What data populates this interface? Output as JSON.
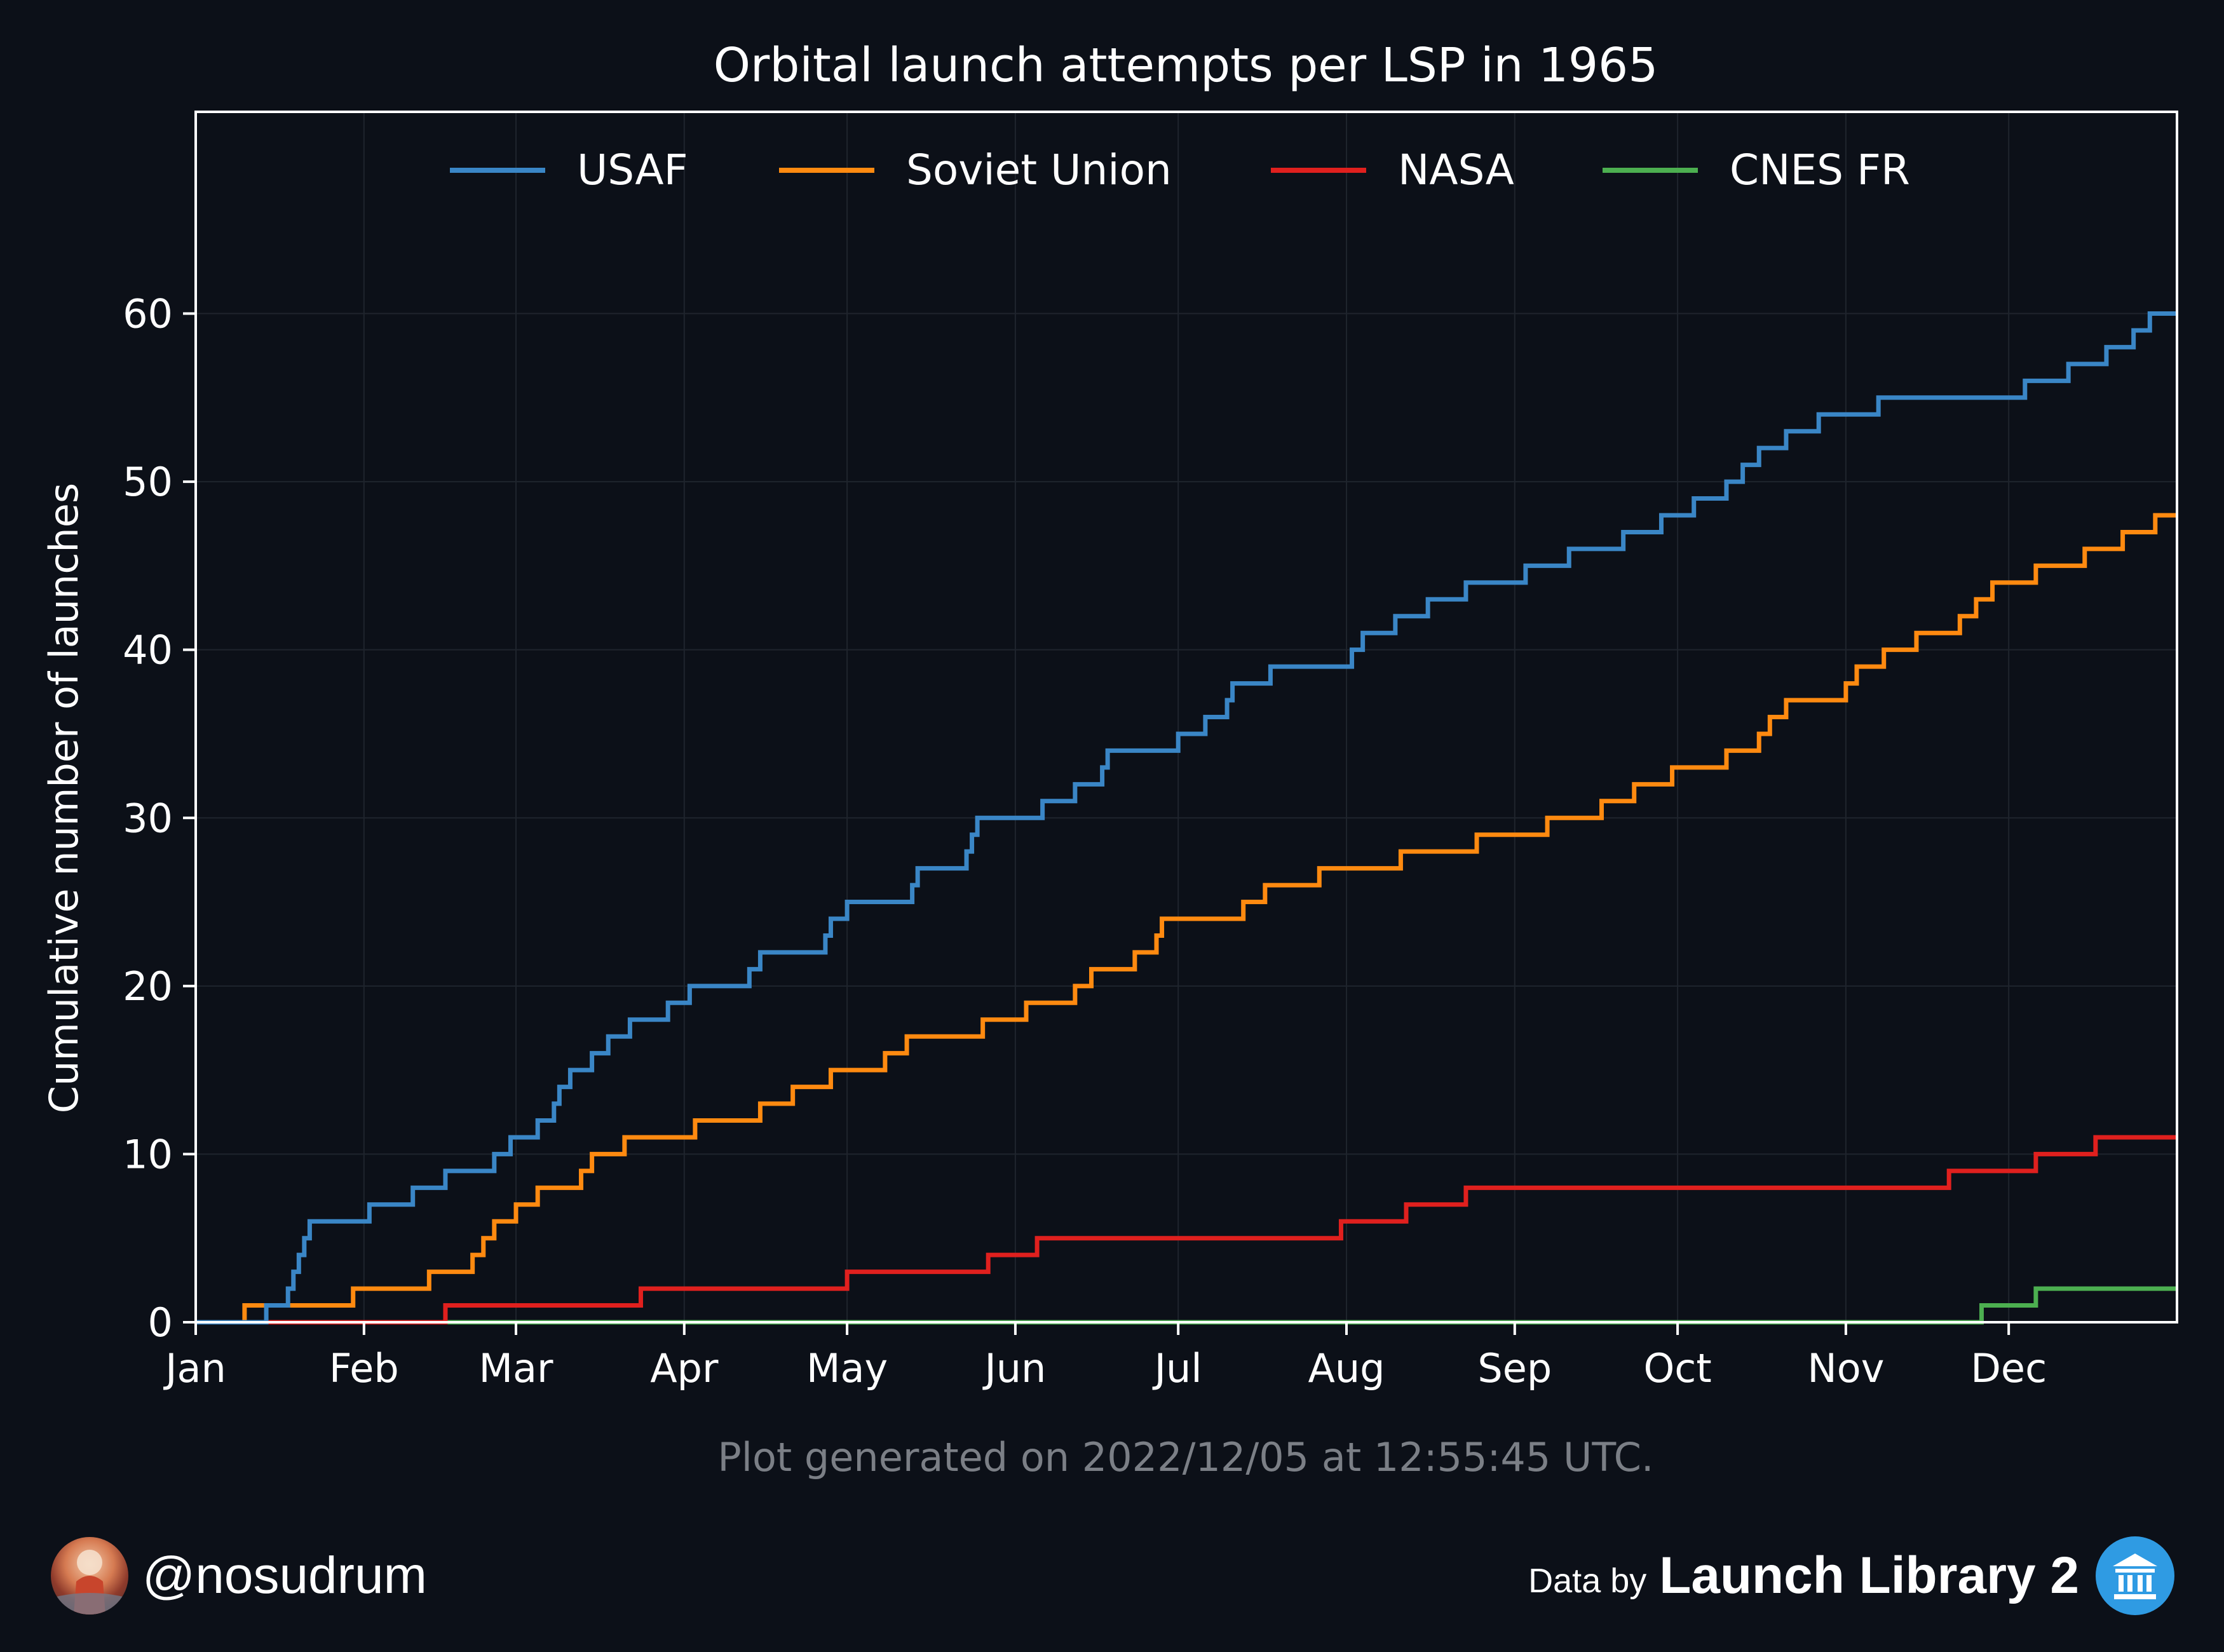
{
  "colors": {
    "background": "#0c1018",
    "text": "#ffffff",
    "footnote": "#7b7f86",
    "grid": "#1f242d",
    "usaf": "#3a86c6",
    "soviet": "#ff8a10",
    "nasa": "#e0201e",
    "cnes": "#4caf50"
  },
  "footnote": "Plot generated on 2022/12/05 at 12:55:45 UTC.",
  "author": {
    "handle": "@nosudrum",
    "avatar_icon": "astronaut-avatar-icon"
  },
  "credit": {
    "prefix": "Data by",
    "name": "Launch Library 2",
    "icon": "library-building-icon"
  },
  "chart_data": {
    "type": "line",
    "step": true,
    "title": "Orbital launch attempts per LSP in 1965",
    "xlabel": "",
    "ylabel": "Cumulative number of launches",
    "x_unit": "day of year 1965",
    "xlim": [
      1,
      366
    ],
    "ylim": [
      0,
      72
    ],
    "yticks": [
      0,
      10,
      20,
      30,
      40,
      50,
      60
    ],
    "xticks": [
      {
        "label": "Jan",
        "day": 1
      },
      {
        "label": "Feb",
        "day": 32
      },
      {
        "label": "Mar",
        "day": 60
      },
      {
        "label": "Apr",
        "day": 91
      },
      {
        "label": "May",
        "day": 121
      },
      {
        "label": "Jun",
        "day": 152
      },
      {
        "label": "Jul",
        "day": 182
      },
      {
        "label": "Aug",
        "day": 213
      },
      {
        "label": "Sep",
        "day": 244
      },
      {
        "label": "Oct",
        "day": 274
      },
      {
        "label": "Nov",
        "day": 305
      },
      {
        "label": "Dec",
        "day": 335
      }
    ],
    "grid": true,
    "legend": "top-center",
    "series": [
      {
        "name": "USAF",
        "color": "#3a86c6",
        "x": [
          1,
          14,
          18,
          19,
          20,
          21,
          22,
          33,
          41,
          47,
          56,
          59,
          64,
          67,
          68,
          70,
          74,
          77,
          81,
          88,
          92,
          103,
          105,
          117,
          118,
          121,
          133,
          134,
          143,
          144,
          145,
          157,
          163,
          168,
          169,
          182,
          187,
          191,
          192,
          199,
          214,
          216,
          222,
          228,
          235,
          246,
          254,
          264,
          271,
          277,
          283,
          286,
          289,
          294,
          300,
          311,
          338,
          346,
          353,
          358,
          361,
          366
        ],
        "y": [
          0,
          1,
          2,
          3,
          4,
          5,
          6,
          7,
          8,
          9,
          10,
          11,
          12,
          13,
          14,
          15,
          16,
          17,
          18,
          19,
          20,
          21,
          22,
          23,
          24,
          25,
          26,
          27,
          28,
          29,
          30,
          31,
          32,
          33,
          34,
          35,
          36,
          37,
          38,
          39,
          40,
          41,
          42,
          43,
          44,
          45,
          46,
          47,
          48,
          49,
          50,
          51,
          52,
          53,
          54,
          55,
          56,
          57,
          58,
          59,
          60,
          60
        ]
      },
      {
        "name": "Soviet Union",
        "color": "#ff8a10",
        "x": [
          1,
          10,
          30,
          44,
          52,
          54,
          56,
          60,
          64,
          72,
          74,
          80,
          93,
          105,
          111,
          118,
          128,
          132,
          146,
          154,
          163,
          166,
          174,
          178,
          179,
          194,
          198,
          208,
          223,
          237,
          250,
          260,
          266,
          273,
          283,
          289,
          291,
          294,
          305,
          307,
          312,
          318,
          326,
          329,
          332,
          340,
          349,
          356,
          362,
          366
        ],
        "y": [
          0,
          1,
          2,
          3,
          4,
          5,
          6,
          7,
          8,
          9,
          10,
          11,
          12,
          13,
          14,
          15,
          16,
          17,
          18,
          19,
          20,
          21,
          22,
          23,
          24,
          25,
          26,
          27,
          28,
          29,
          30,
          31,
          32,
          33,
          34,
          35,
          36,
          37,
          38,
          39,
          40,
          41,
          42,
          43,
          44,
          45,
          46,
          47,
          48,
          48
        ]
      },
      {
        "name": "NASA",
        "color": "#e0201e",
        "x": [
          1,
          47,
          83,
          121,
          147,
          156,
          212,
          224,
          235,
          324,
          340,
          351,
          366
        ],
        "y": [
          0,
          1,
          2,
          3,
          4,
          5,
          6,
          7,
          8,
          9,
          10,
          11,
          11
        ]
      },
      {
        "name": "CNES FR",
        "color": "#4caf50",
        "x": [
          1,
          330,
          340,
          366
        ],
        "y": [
          0,
          1,
          2,
          2
        ]
      }
    ]
  }
}
